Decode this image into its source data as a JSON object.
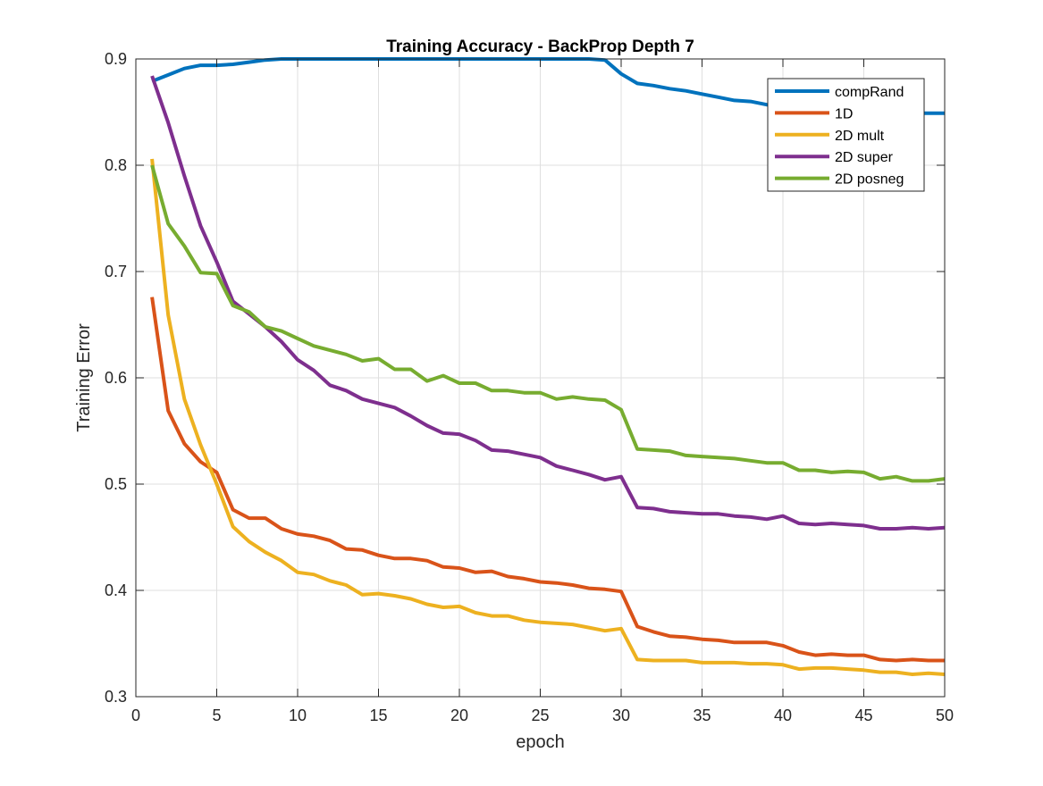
{
  "chart_data": {
    "type": "line",
    "title": "Training Accuracy - BackProp Depth 7",
    "xlabel": "epoch",
    "ylabel": "Training Error",
    "xlim": [
      0,
      50
    ],
    "ylim": [
      0.3,
      0.9
    ],
    "xticks": [
      0,
      5,
      10,
      15,
      20,
      25,
      30,
      35,
      40,
      45,
      50
    ],
    "yticks": [
      0.3,
      0.4,
      0.5,
      0.6,
      0.7,
      0.8,
      0.9
    ],
    "xtick_labels": [
      "0",
      "5",
      "10",
      "15",
      "20",
      "25",
      "30",
      "35",
      "40",
      "45",
      "50"
    ],
    "ytick_labels": [
      "0.3",
      "0.4",
      "0.5",
      "0.6",
      "0.7",
      "0.8",
      "0.9"
    ],
    "grid": true,
    "legend_position": "top-right",
    "x": [
      1,
      2,
      3,
      4,
      5,
      6,
      7,
      8,
      9,
      10,
      11,
      12,
      13,
      14,
      15,
      16,
      17,
      18,
      19,
      20,
      21,
      22,
      23,
      24,
      25,
      26,
      27,
      28,
      29,
      30,
      31,
      32,
      33,
      34,
      35,
      36,
      37,
      38,
      39,
      40,
      41,
      42,
      43,
      44,
      45,
      46,
      47,
      48,
      49,
      50
    ],
    "series": [
      {
        "name": "compRand",
        "color": "#0072BD",
        "values": [
          0.879,
          0.885,
          0.891,
          0.894,
          0.894,
          0.895,
          0.897,
          0.899,
          0.9,
          0.9,
          0.9,
          0.9,
          0.9,
          0.9,
          0.9,
          0.9,
          0.9,
          0.9,
          0.9,
          0.9,
          0.9,
          0.9,
          0.9,
          0.9,
          0.9,
          0.9,
          0.9,
          0.9,
          0.899,
          0.886,
          0.877,
          0.875,
          0.872,
          0.87,
          0.867,
          0.864,
          0.861,
          0.86,
          0.857,
          0.856,
          0.855,
          0.854,
          0.853,
          0.852,
          0.851,
          0.85,
          0.85,
          0.849,
          0.849,
          0.849
        ]
      },
      {
        "name": "1D",
        "color": "#D95319",
        "values": [
          0.676,
          0.569,
          0.538,
          0.521,
          0.511,
          0.476,
          0.468,
          0.468,
          0.458,
          0.453,
          0.451,
          0.447,
          0.439,
          0.438,
          0.433,
          0.43,
          0.43,
          0.428,
          0.422,
          0.421,
          0.417,
          0.418,
          0.413,
          0.411,
          0.408,
          0.407,
          0.405,
          0.402,
          0.401,
          0.399,
          0.366,
          0.361,
          0.357,
          0.356,
          0.354,
          0.353,
          0.351,
          0.351,
          0.351,
          0.348,
          0.342,
          0.339,
          0.34,
          0.339,
          0.339,
          0.335,
          0.334,
          0.335,
          0.334,
          0.334
        ]
      },
      {
        "name": "2D mult",
        "color": "#EDB120",
        "values": [
          0.806,
          0.659,
          0.58,
          0.537,
          0.5,
          0.46,
          0.446,
          0.436,
          0.428,
          0.417,
          0.415,
          0.409,
          0.405,
          0.396,
          0.397,
          0.395,
          0.392,
          0.387,
          0.384,
          0.385,
          0.379,
          0.376,
          0.376,
          0.372,
          0.37,
          0.369,
          0.368,
          0.365,
          0.362,
          0.364,
          0.335,
          0.334,
          0.334,
          0.334,
          0.332,
          0.332,
          0.332,
          0.331,
          0.331,
          0.33,
          0.326,
          0.327,
          0.327,
          0.326,
          0.325,
          0.323,
          0.323,
          0.321,
          0.322,
          0.321
        ]
      },
      {
        "name": "2D super",
        "color": "#7E2F8E",
        "values": [
          0.884,
          0.84,
          0.79,
          0.743,
          0.709,
          0.672,
          0.66,
          0.648,
          0.634,
          0.617,
          0.607,
          0.593,
          0.588,
          0.58,
          0.576,
          0.572,
          0.564,
          0.555,
          0.548,
          0.547,
          0.541,
          0.532,
          0.531,
          0.528,
          0.525,
          0.517,
          0.513,
          0.509,
          0.504,
          0.507,
          0.478,
          0.477,
          0.474,
          0.473,
          0.472,
          0.472,
          0.47,
          0.469,
          0.467,
          0.47,
          0.463,
          0.462,
          0.463,
          0.462,
          0.461,
          0.458,
          0.458,
          0.459,
          0.458,
          0.459
        ]
      },
      {
        "name": "2D posneg",
        "color": "#77AC30",
        "values": [
          0.8,
          0.745,
          0.724,
          0.699,
          0.698,
          0.668,
          0.662,
          0.648,
          0.644,
          0.637,
          0.63,
          0.626,
          0.622,
          0.616,
          0.618,
          0.608,
          0.608,
          0.597,
          0.602,
          0.595,
          0.595,
          0.588,
          0.588,
          0.586,
          0.586,
          0.58,
          0.582,
          0.58,
          0.579,
          0.57,
          0.533,
          0.532,
          0.531,
          0.527,
          0.526,
          0.525,
          0.524,
          0.522,
          0.52,
          0.52,
          0.513,
          0.513,
          0.511,
          0.512,
          0.511,
          0.505,
          0.507,
          0.503,
          0.503,
          0.505
        ]
      }
    ]
  }
}
